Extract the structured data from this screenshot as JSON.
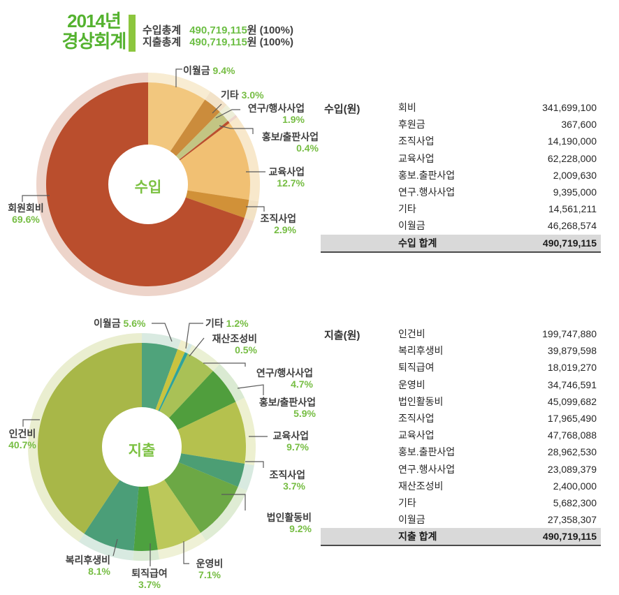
{
  "header": {
    "title_line1": "2014년",
    "title_line2": "경상회계",
    "title_color": "#54B22F",
    "bar_color": "#8CC63E",
    "amount_color": "#6CBE44",
    "totals": [
      {
        "label": "수입총계",
        "amount": "490,719,115",
        "suffix": "원",
        "pct": "(100%)"
      },
      {
        "label": "지출총계",
        "amount": "490,719,115",
        "suffix": "원",
        "pct": "(100%)"
      }
    ]
  },
  "accent": {
    "green_text": "#76BD43",
    "center_label_green": "#7CC142",
    "label_dark": "#3F3F3F"
  },
  "chart_data": [
    {
      "type": "donut",
      "name": "income",
      "center_label": "수입",
      "total": "490,719,115",
      "slices": [
        {
          "label": "이월금",
          "pct": 9.4,
          "pct_label": "9.4%",
          "color": "#F2C77E",
          "pale": "#F8ECD2"
        },
        {
          "label": "기타",
          "pct": 3.0,
          "pct_label": "3.0%",
          "color": "#CB8C3C",
          "pale": "#F2E2C8"
        },
        {
          "label": "연구/행사사업",
          "pct": 1.9,
          "pct_label": "1.9%",
          "color": "#C3C583",
          "pale": "#EDEED8"
        },
        {
          "label": "홍보/출판사업",
          "pct": 0.4,
          "pct_label": "0.4%",
          "color": "#BA4F2E",
          "pale": "#EDD5CB"
        },
        {
          "label": "교육사업",
          "pct": 12.7,
          "pct_label": "12.7%",
          "color": "#F1C073",
          "pale": "#F8E8CB"
        },
        {
          "label": "조직사업",
          "pct": 2.9,
          "pct_label": "2.9%",
          "color": "#D19138",
          "pale": "#F2E2C4"
        },
        {
          "label": "회원회비",
          "pct": 69.6,
          "pct_label": "69.6%",
          "color": "#BA4E2D",
          "pale": "#EDD4CA"
        }
      ]
    },
    {
      "type": "donut",
      "name": "expense",
      "center_label": "지출",
      "total": "490,719,115",
      "slices": [
        {
          "label": "이월금",
          "pct": 5.6,
          "pct_label": "5.6%",
          "color": "#4FA37B",
          "pale": "#D9EAE1"
        },
        {
          "label": "기타",
          "pct": 1.2,
          "pct_label": "1.2%",
          "color": "#C9C33F",
          "pale": "#F0EECC"
        },
        {
          "label": "재산조성비",
          "pct": 0.5,
          "pct_label": "0.5%",
          "color": "#2FA39B",
          "pale": "#D4E9E6"
        },
        {
          "label": "연구/행사사업",
          "pct": 4.7,
          "pct_label": "4.7%",
          "color": "#A9C156",
          "pale": "#EAF0D4"
        },
        {
          "label": "홍보/출판사업",
          "pct": 5.9,
          "pct_label": "5.9%",
          "color": "#509E3D",
          "pale": "#DAEAD2"
        },
        {
          "label": "교육사업",
          "pct": 9.7,
          "pct_label": "9.7%",
          "color": "#B5C14E",
          "pale": "#EDF0D0"
        },
        {
          "label": "조직사업",
          "pct": 3.7,
          "pct_label": "3.7%",
          "color": "#4C9E74",
          "pale": "#D8EAE0"
        },
        {
          "label": "법인활동비",
          "pct": 9.2,
          "pct_label": "9.2%",
          "color": "#6CA845",
          "pale": "#DFECD4"
        },
        {
          "label": "운영비",
          "pct": 7.1,
          "pct_label": "7.1%",
          "color": "#BCC85A",
          "pale": "#EFF1D6"
        },
        {
          "label": "퇴직급여",
          "pct": 3.7,
          "pct_label": "3.7%",
          "color": "#4DA13F",
          "pale": "#D9EAD3"
        },
        {
          "label": "복리후생비",
          "pct": 8.1,
          "pct_label": "8.1%",
          "color": "#4B9E78",
          "pale": "#D8EAE1"
        },
        {
          "label": "인건비",
          "pct": 40.7,
          "pct_label": "40.7%",
          "color": "#A8B748",
          "pale": "#EAEED0"
        }
      ]
    }
  ],
  "income_table": {
    "header": "수입(원)",
    "rows": [
      {
        "label": "회비",
        "value": "341,699,100"
      },
      {
        "label": "후원금",
        "value": "367,600"
      },
      {
        "label": "조직사업",
        "value": "14,190,000"
      },
      {
        "label": "교육사업",
        "value": "62,228,000"
      },
      {
        "label": "홍보.출판사업",
        "value": "2,009,630"
      },
      {
        "label": "연구.행사사업",
        "value": "9,395,000"
      },
      {
        "label": "기타",
        "value": "14,561,211"
      },
      {
        "label": "이월금",
        "value": "46,268,574"
      }
    ],
    "total_label": "수입 합계",
    "total_value": "490,719,115"
  },
  "expense_table": {
    "header": "지출(원)",
    "rows": [
      {
        "label": "인건비",
        "value": "199,747,880"
      },
      {
        "label": "복리후생비",
        "value": "39,879,598"
      },
      {
        "label": "퇴직급여",
        "value": "18,019,270"
      },
      {
        "label": "운영비",
        "value": "34,746,591"
      },
      {
        "label": "법인활동비",
        "value": "45,099,682"
      },
      {
        "label": "조직사업",
        "value": "17,965,490"
      },
      {
        "label": "교육사업",
        "value": "47,768,088"
      },
      {
        "label": "홍보.출판사업",
        "value": "28,962,530"
      },
      {
        "label": "연구.행사사업",
        "value": "23,089,379"
      },
      {
        "label": "재산조성비",
        "value": "2,400,000"
      },
      {
        "label": "기타",
        "value": "5,682,300"
      },
      {
        "label": "이월금",
        "value": "27,358,307"
      }
    ],
    "total_label": "지출 합계",
    "total_value": "490,719,115"
  }
}
